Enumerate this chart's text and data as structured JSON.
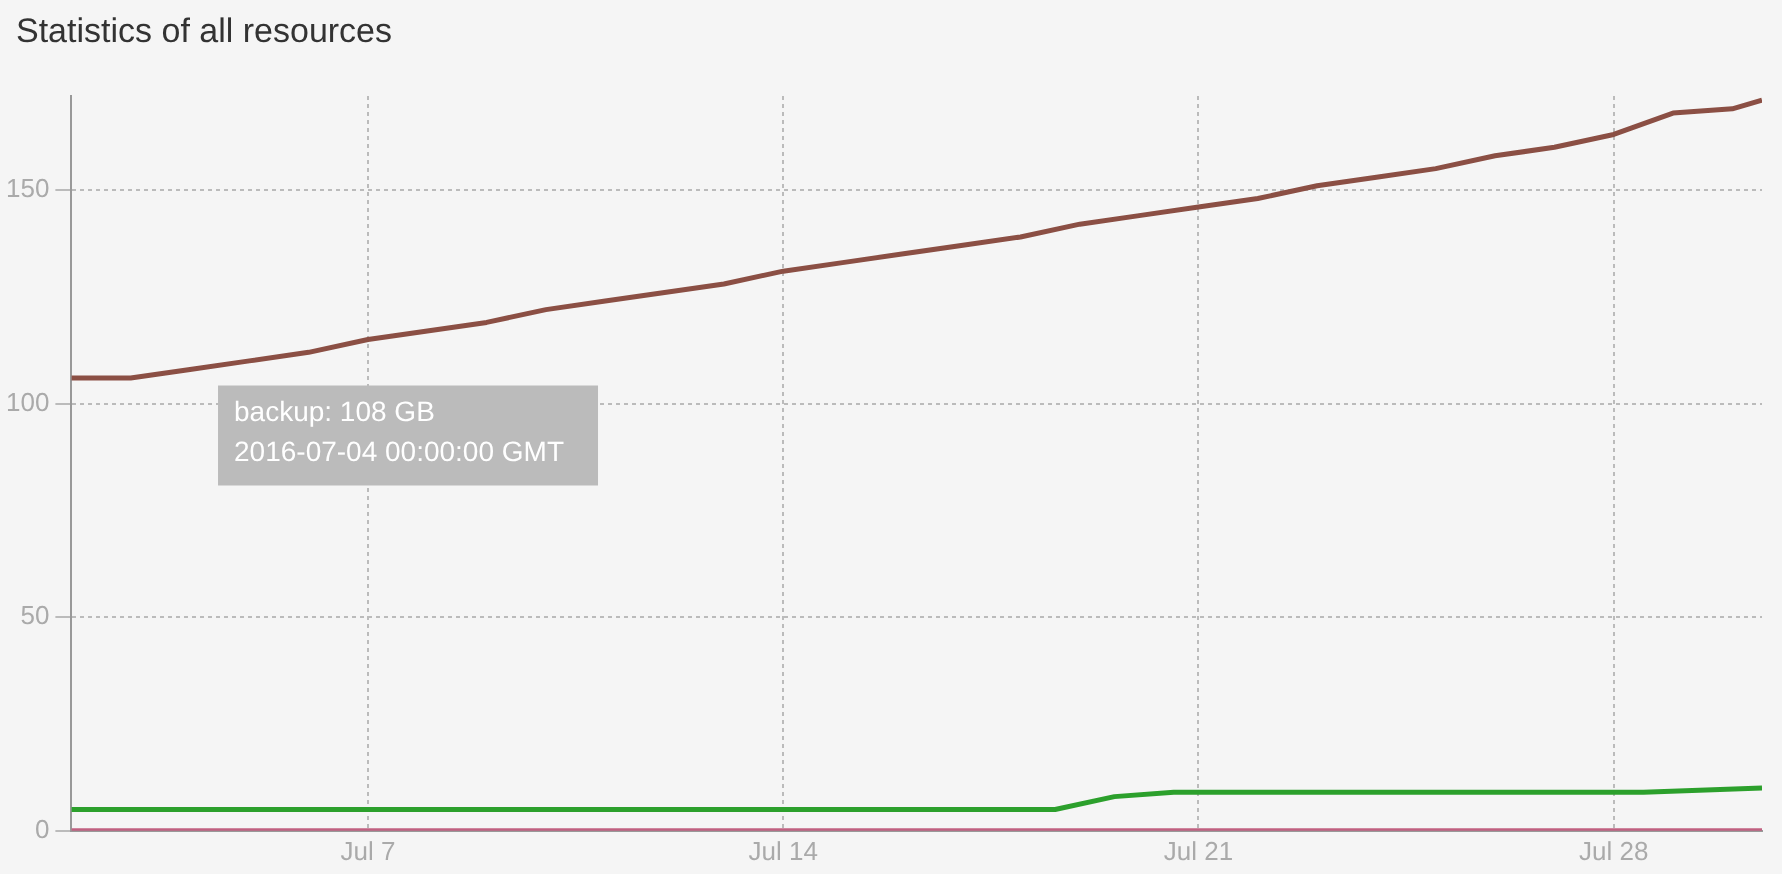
{
  "chart_data": {
    "type": "line",
    "title": "Statistics of all resources",
    "xlim": [
      "2016-07-02",
      "2016-07-30T12:00"
    ],
    "xticks": [
      {
        "value": "2016-07-07",
        "label": "Jul 7"
      },
      {
        "value": "2016-07-14",
        "label": "Jul 14"
      },
      {
        "value": "2016-07-21",
        "label": "Jul 21"
      },
      {
        "value": "2016-07-28",
        "label": "Jul 28"
      }
    ],
    "ylim": [
      0,
      172
    ],
    "yticks": [
      0,
      50,
      100,
      150
    ],
    "grid": true,
    "legend": false,
    "marker": "none",
    "line_style": "solid",
    "series": [
      {
        "color": "#8b4f44",
        "x": [
          "2016-07-02",
          "2016-07-03",
          "2016-07-04",
          "2016-07-05",
          "2016-07-06",
          "2016-07-07",
          "2016-07-08",
          "2016-07-09",
          "2016-07-10",
          "2016-07-11",
          "2016-07-12",
          "2016-07-13",
          "2016-07-14",
          "2016-07-15",
          "2016-07-16",
          "2016-07-17",
          "2016-07-18",
          "2016-07-19",
          "2016-07-20",
          "2016-07-21",
          "2016-07-22",
          "2016-07-23",
          "2016-07-24",
          "2016-07-25",
          "2016-07-26",
          "2016-07-27",
          "2016-07-28",
          "2016-07-29",
          "2016-07-30",
          "2016-07-30T12:00"
        ],
        "values": [
          106,
          106,
          108,
          110,
          112,
          115,
          117,
          119,
          122,
          124,
          126,
          128,
          131,
          133,
          135,
          137,
          139,
          142,
          144,
          146,
          148,
          151,
          153,
          155,
          158,
          160,
          163,
          168,
          169,
          171
        ]
      },
      {
        "color": "#2ca02c",
        "x": [
          "2016-07-02",
          "2016-07-12",
          "2016-07-18T14:00",
          "2016-07-19T14:00",
          "2016-07-20T14:00",
          "2016-07-28T12:00",
          "2016-07-30T12:00"
        ],
        "values": [
          5,
          5,
          5,
          8,
          9,
          9,
          10
        ]
      },
      {
        "color": "#c06080",
        "x": [
          "2016-07-02",
          "2016-07-30T12:00"
        ],
        "values": [
          0,
          0
        ]
      }
    ],
    "annotations": [
      {
        "text": "backup: 108 GB",
        "x": "2016-07-04",
        "y": 108
      },
      "2016-07-04 00:00:00 GMT"
    ]
  }
}
